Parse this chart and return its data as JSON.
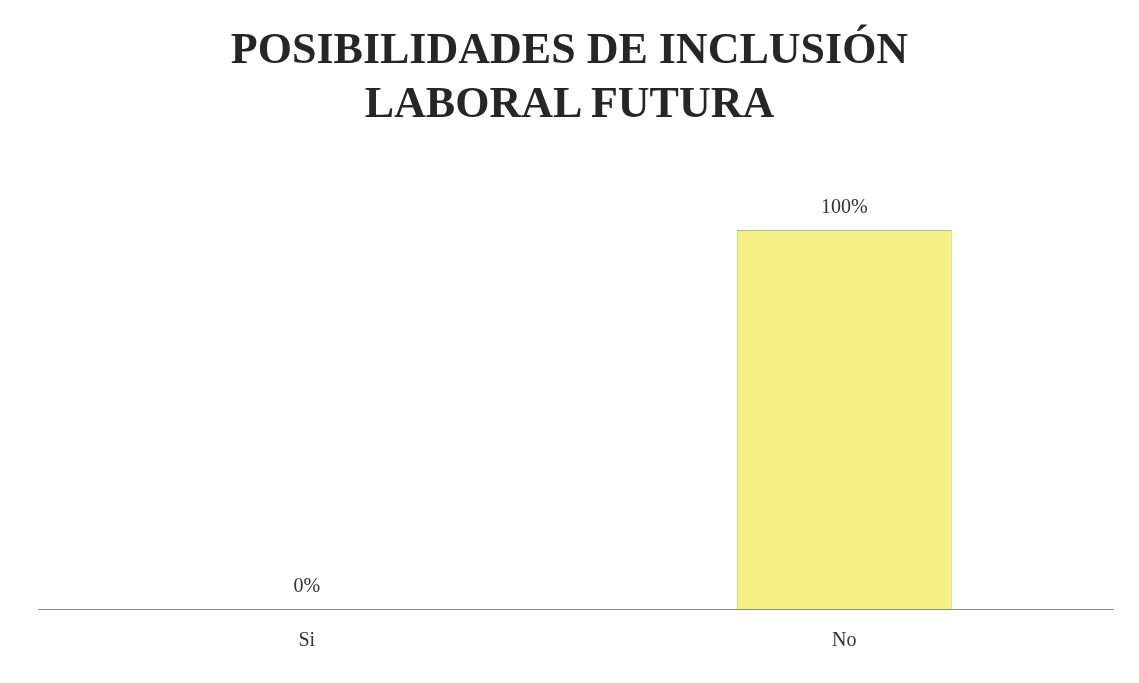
{
  "chart_data": {
    "type": "bar",
    "title": "POSIBILIDADES DE INCLUSIÓN LABORAL FUTURA",
    "categories": [
      "Si",
      "No"
    ],
    "values": [
      0,
      100
    ],
    "value_labels": [
      "0%",
      "100%"
    ],
    "color": "#f6ef86",
    "ylim": [
      0,
      100
    ],
    "tick_labels": "x",
    "grid": false,
    "legend": false
  }
}
